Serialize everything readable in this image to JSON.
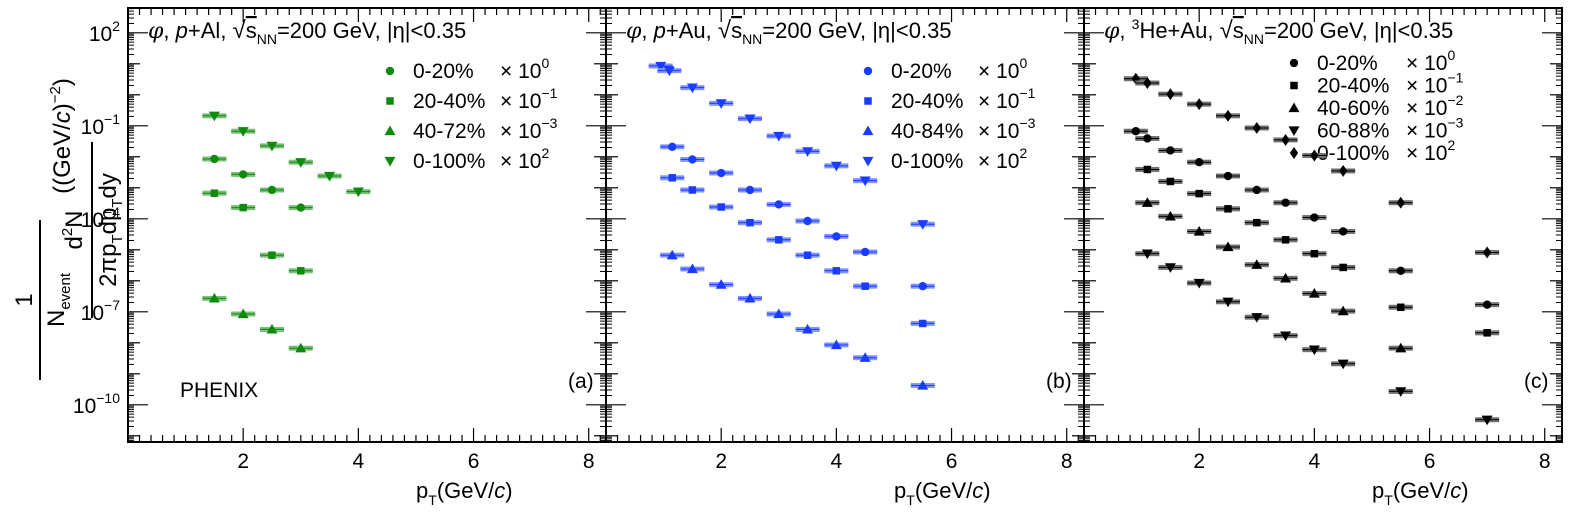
{
  "chart_data": [
    {
      "type": "scatter",
      "panel_label": "(a)",
      "title_parts": {
        "particle": "φ",
        "system": "p+Al",
        "energy": "=200 GeV",
        "eta": "|η|<0.35"
      },
      "experiment_label": "PHENIX",
      "xlabel": "p_T(GeV/c)",
      "ylabel": "1/N_event d²N/(2πp_T dp_T dy) ((GeV/c)^-2)",
      "xlim": [
        0,
        8.3
      ],
      "ylim_log10": [
        -11.2,
        2.8
      ],
      "log_y": true,
      "legend_position": "top-right",
      "color": "#0f8a0f",
      "series": [
        {
          "name": "0-20%",
          "scale_base": "× 10",
          "scale_exp": "0",
          "marker": "circle",
          "x": [
            1.5,
            2.0,
            2.5,
            3.0
          ],
          "y": [
            0.0085,
            0.0027,
            0.00085,
            0.00023
          ]
        },
        {
          "name": "20-40%",
          "scale_base": "× 10",
          "scale_exp": "-1",
          "marker": "square",
          "x": [
            1.5,
            2.0,
            2.5,
            3.0
          ],
          "y": [
            0.00067,
            0.00023,
            6.7e-06,
            2.1e-06
          ]
        },
        {
          "name": "40-72%",
          "scale_base": "× 10",
          "scale_exp": "-3",
          "marker": "triangle-up",
          "x": [
            1.5,
            2.0,
            2.5,
            3.0
          ],
          "y": [
            2.7e-07,
            8.5e-08,
            2.7e-08,
            6.7e-09
          ]
        },
        {
          "name": "0-100%",
          "scale_base": "× 10",
          "scale_exp": "2",
          "marker": "triangle-down",
          "x": [
            1.5,
            2.0,
            2.5,
            3.0,
            3.5,
            4.0
          ],
          "y": [
            0.21,
            0.067,
            0.0225,
            0.0067,
            0.0024,
            0.00075
          ]
        }
      ]
    },
    {
      "type": "scatter",
      "panel_label": "(b)",
      "title_parts": {
        "particle": "φ",
        "system": "p+Au",
        "energy": "=200 GeV",
        "eta": "|η|<0.35"
      },
      "xlabel": "p_T(GeV/c)",
      "xlim": [
        0,
        8.3
      ],
      "ylim_log10": [
        -11.2,
        2.8
      ],
      "log_y": true,
      "legend_position": "top-right",
      "color": "#1a3cff",
      "series": [
        {
          "name": "0-20%",
          "scale_base": "× 10",
          "scale_exp": "0",
          "marker": "circle",
          "x": [
            1.15,
            1.5,
            2.0,
            2.5,
            3.0,
            3.5,
            4.0,
            4.5,
            5.5
          ],
          "y": [
            0.021,
            0.0082,
            0.003,
            0.00085,
            0.00029,
            8.5e-05,
            2.7e-05,
            8.5e-06,
            6.7e-07
          ]
        },
        {
          "name": "20-40%",
          "scale_base": "× 10",
          "scale_exp": "-1",
          "marker": "square",
          "x": [
            1.15,
            1.5,
            2.0,
            2.5,
            3.0,
            3.5,
            4.0,
            4.5,
            5.5
          ],
          "y": [
            0.0021,
            0.00085,
            0.00024,
            7.5e-05,
            2.1e-05,
            6.7e-06,
            2.1e-06,
            6.7e-07,
            4.2e-08
          ]
        },
        {
          "name": "40-84%",
          "scale_base": "× 10",
          "scale_exp": "-3",
          "marker": "triangle-up",
          "x": [
            1.15,
            1.5,
            2.0,
            2.5,
            3.0,
            3.5,
            4.0,
            4.5,
            5.5
          ],
          "y": [
            6.7e-06,
            2.4e-06,
            7.5e-07,
            2.7e-07,
            8.5e-08,
            2.7e-08,
            8.5e-09,
            3.3e-09,
            4.2e-10
          ]
        },
        {
          "name": "0-100%",
          "scale_base": "× 10",
          "scale_exp": "2",
          "marker": "triangle-down",
          "x": [
            0.95,
            1.1,
            1.5,
            2.0,
            2.5,
            3.0,
            3.5,
            4.0,
            4.5,
            5.5
          ],
          "y": [
            8.5,
            6.0,
            1.7,
            0.53,
            0.17,
            0.047,
            0.015,
            0.0051,
            0.0017,
            6.7e-05
          ]
        }
      ]
    },
    {
      "type": "scatter",
      "panel_label": "(c)",
      "title_parts": {
        "particle": "φ",
        "system_sup": "3",
        "system": "He+Au",
        "energy": "=200 GeV",
        "eta": "|η|<0.35"
      },
      "xlabel": "p_T(GeV/c)",
      "xlim": [
        0,
        8.3
      ],
      "ylim_log10": [
        -11.2,
        2.8
      ],
      "log_y": true,
      "legend_position": "top-right",
      "color": "#000000",
      "series": [
        {
          "name": "0-20%",
          "scale_base": "× 10",
          "scale_exp": "0",
          "marker": "circle",
          "x": [
            0.9,
            1.1,
            1.5,
            2.0,
            2.5,
            3.0,
            3.5,
            4.0,
            4.5,
            5.5,
            7.0
          ],
          "y": [
            0.067,
            0.039,
            0.016,
            0.0067,
            0.0024,
            0.00085,
            0.00033,
            0.00011,
            3.9e-05,
            2.1e-06,
            1.7e-07
          ]
        },
        {
          "name": "20-40%",
          "scale_base": "× 10",
          "scale_exp": "-1",
          "marker": "square",
          "x": [
            1.1,
            1.5,
            2.0,
            2.5,
            3.0,
            3.5,
            4.0,
            4.5,
            5.5,
            7.0
          ],
          "y": [
            0.0039,
            0.0016,
            0.00065,
            0.00021,
            7.5e-05,
            2.1e-05,
            7.5e-06,
            2.7e-06,
            1.4e-07,
            2.1e-08
          ]
        },
        {
          "name": "40-60%",
          "scale_base": "× 10",
          "scale_exp": "-2",
          "marker": "triangle-up",
          "x": [
            1.1,
            1.5,
            2.0,
            2.5,
            3.0,
            3.5,
            4.0,
            4.5,
            5.5
          ],
          "y": [
            0.00033,
            0.00012,
            3.9e-05,
            1.23e-05,
            3.3e-06,
            1.2e-06,
            3.9e-07,
            1.05e-07,
            6.7e-09
          ]
        },
        {
          "name": "60-88%",
          "scale_base": "× 10",
          "scale_exp": "-3",
          "marker": "triangle-down",
          "x": [
            1.1,
            1.5,
            2.0,
            2.5,
            3.0,
            3.5,
            4.0,
            4.5,
            5.5,
            7.0
          ],
          "y": [
            7.5e-06,
            2.7e-06,
            8.5e-07,
            2.1e-07,
            6.7e-08,
            1.7e-08,
            6e-09,
            2.1e-09,
            2.7e-10,
            3.3e-11
          ]
        },
        {
          "name": "0-100%",
          "scale_base": "× 10",
          "scale_exp": "2",
          "marker": "diamond",
          "x": [
            0.9,
            1.1,
            1.5,
            2.0,
            2.5,
            3.0,
            3.5,
            4.0,
            4.5,
            5.5,
            7.0
          ],
          "y": [
            3.3,
            2.4,
            1.05,
            0.5,
            0.21,
            0.085,
            0.035,
            0.011,
            0.0035,
            0.00033,
            8.2e-06
          ]
        }
      ]
    }
  ]
}
